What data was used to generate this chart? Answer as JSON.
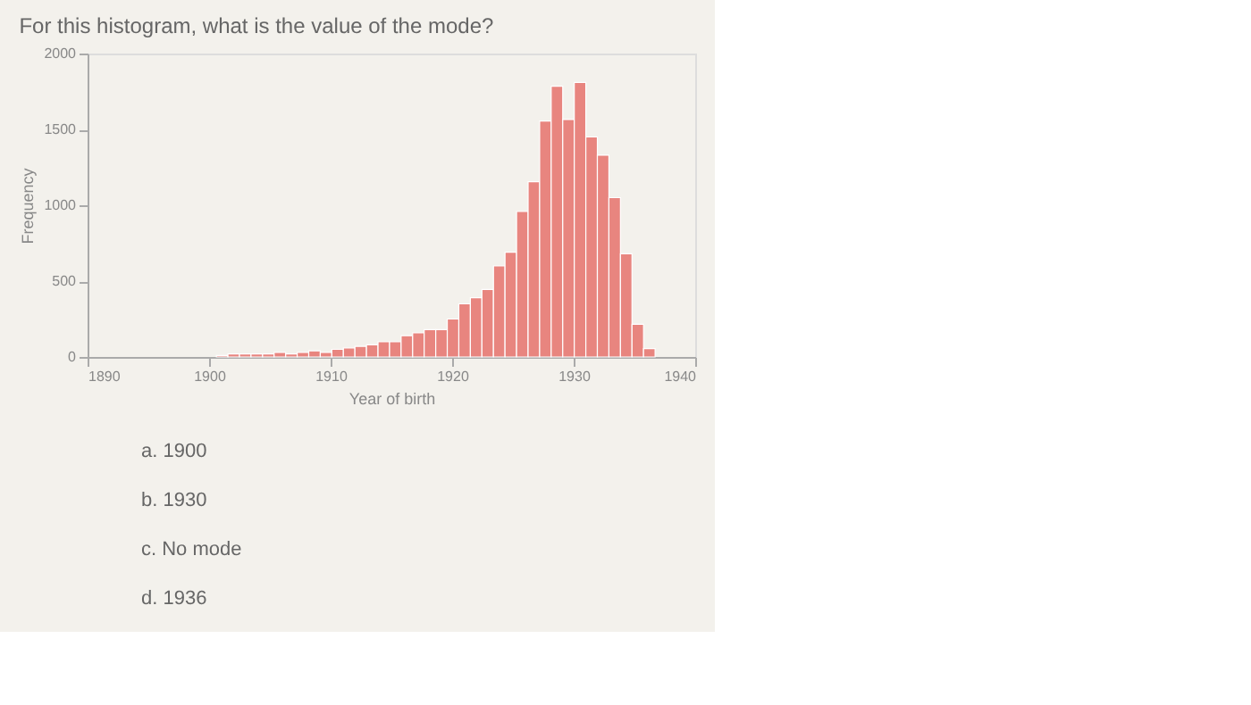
{
  "chart_data": {
    "type": "histogram",
    "title": "For this histogram, what is the value of the mode?",
    "xlabel": "Year of birth",
    "ylabel": "Frequency",
    "bins": [
      1900.6,
      1901.55,
      1902.5,
      1903.45,
      1904.4,
      1905.35,
      1906.3,
      1907.25,
      1908.2,
      1909.15,
      1910.1,
      1911.05,
      1912.0,
      1912.95,
      1913.9,
      1914.85,
      1915.8,
      1916.75,
      1917.7,
      1918.65,
      1919.6,
      1920.55,
      1921.5,
      1922.45,
      1923.4,
      1924.35,
      1925.3,
      1926.25,
      1927.2,
      1928.15,
      1929.1,
      1930.05,
      1931.0,
      1931.95,
      1932.9,
      1933.85,
      1934.8,
      1935.75,
      1936.7
    ],
    "values": [
      10,
      20,
      20,
      20,
      20,
      30,
      20,
      30,
      40,
      30,
      50,
      60,
      70,
      80,
      100,
      100,
      140,
      160,
      180,
      180,
      250,
      350,
      390,
      445,
      600,
      690,
      960,
      1155,
      1555,
      1785,
      1565,
      1810,
      1450,
      1330,
      1050,
      680,
      215,
      55
    ],
    "color": "#e8857f",
    "xlim": [
      1890,
      1940
    ],
    "xticks": [
      1890,
      1900,
      1910,
      1920,
      1930,
      1940
    ],
    "ylim": [
      0,
      2000
    ],
    "yticks": [
      0,
      500,
      1000,
      1500,
      2000
    ],
    "grid": false,
    "annotations": [
      "a. 1900",
      "b. 1930",
      "c. No mode",
      "d. 1936"
    ]
  }
}
